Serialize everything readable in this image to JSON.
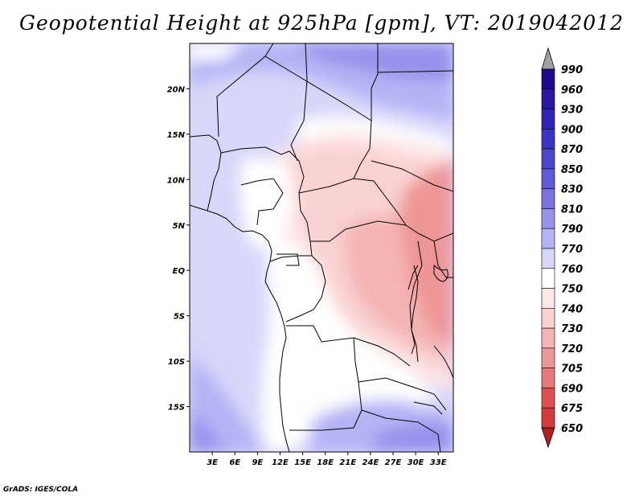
{
  "title": "Geopotential Height at 925hPa [gpm], VT: 2019042012",
  "credit": "GrADS: IGES/COLA",
  "map": {
    "lon_range": [
      0,
      35
    ],
    "lat_range": [
      -20,
      25
    ],
    "lat_ticks": [
      {
        "value": 20,
        "label": "20N"
      },
      {
        "value": 15,
        "label": "15N"
      },
      {
        "value": 10,
        "label": "10N"
      },
      {
        "value": 5,
        "label": "5N"
      },
      {
        "value": 0,
        "label": "EQ"
      },
      {
        "value": -5,
        "label": "5S"
      },
      {
        "value": -10,
        "label": "10S"
      },
      {
        "value": -15,
        "label": "15S"
      }
    ],
    "lon_ticks": [
      {
        "value": 3,
        "label": "3E"
      },
      {
        "value": 6,
        "label": "6E"
      },
      {
        "value": 9,
        "label": "9E"
      },
      {
        "value": 12,
        "label": "12E"
      },
      {
        "value": 15,
        "label": "15E"
      },
      {
        "value": 18,
        "label": "18E"
      },
      {
        "value": 21,
        "label": "21E"
      },
      {
        "value": 24,
        "label": "24E"
      },
      {
        "value": 27,
        "label": "27E"
      },
      {
        "value": 30,
        "label": "30E"
      },
      {
        "value": 33,
        "label": "33E"
      }
    ]
  },
  "colorbar": {
    "levels": [
      {
        "label": "990",
        "color": "#1e0a8c"
      },
      {
        "label": "960",
        "color": "#2818a0"
      },
      {
        "label": "930",
        "color": "#3224b4"
      },
      {
        "label": "900",
        "color": "#3c32c3"
      },
      {
        "label": "870",
        "color": "#4b46cd"
      },
      {
        "label": "850",
        "color": "#5f5ad7"
      },
      {
        "label": "830",
        "color": "#7873e1"
      },
      {
        "label": "810",
        "color": "#9691eb"
      },
      {
        "label": "790",
        "color": "#b4b4f5"
      },
      {
        "label": "770",
        "color": "#d7d7fa"
      },
      {
        "label": "760",
        "color": "#ffffff"
      },
      {
        "label": "750",
        "color": "#fde6e6"
      },
      {
        "label": "740",
        "color": "#fad2d2"
      },
      {
        "label": "730",
        "color": "#f5b4b4"
      },
      {
        "label": "720",
        "color": "#ee9696"
      },
      {
        "label": "705",
        "color": "#e67878"
      },
      {
        "label": "690",
        "color": "#dc5050"
      },
      {
        "label": "675",
        "color": "#d23c3c"
      },
      {
        "label": "650",
        "color": "#c32828"
      }
    ],
    "over_color": "#a0a0a0",
    "under_color": "#b41e1e"
  }
}
